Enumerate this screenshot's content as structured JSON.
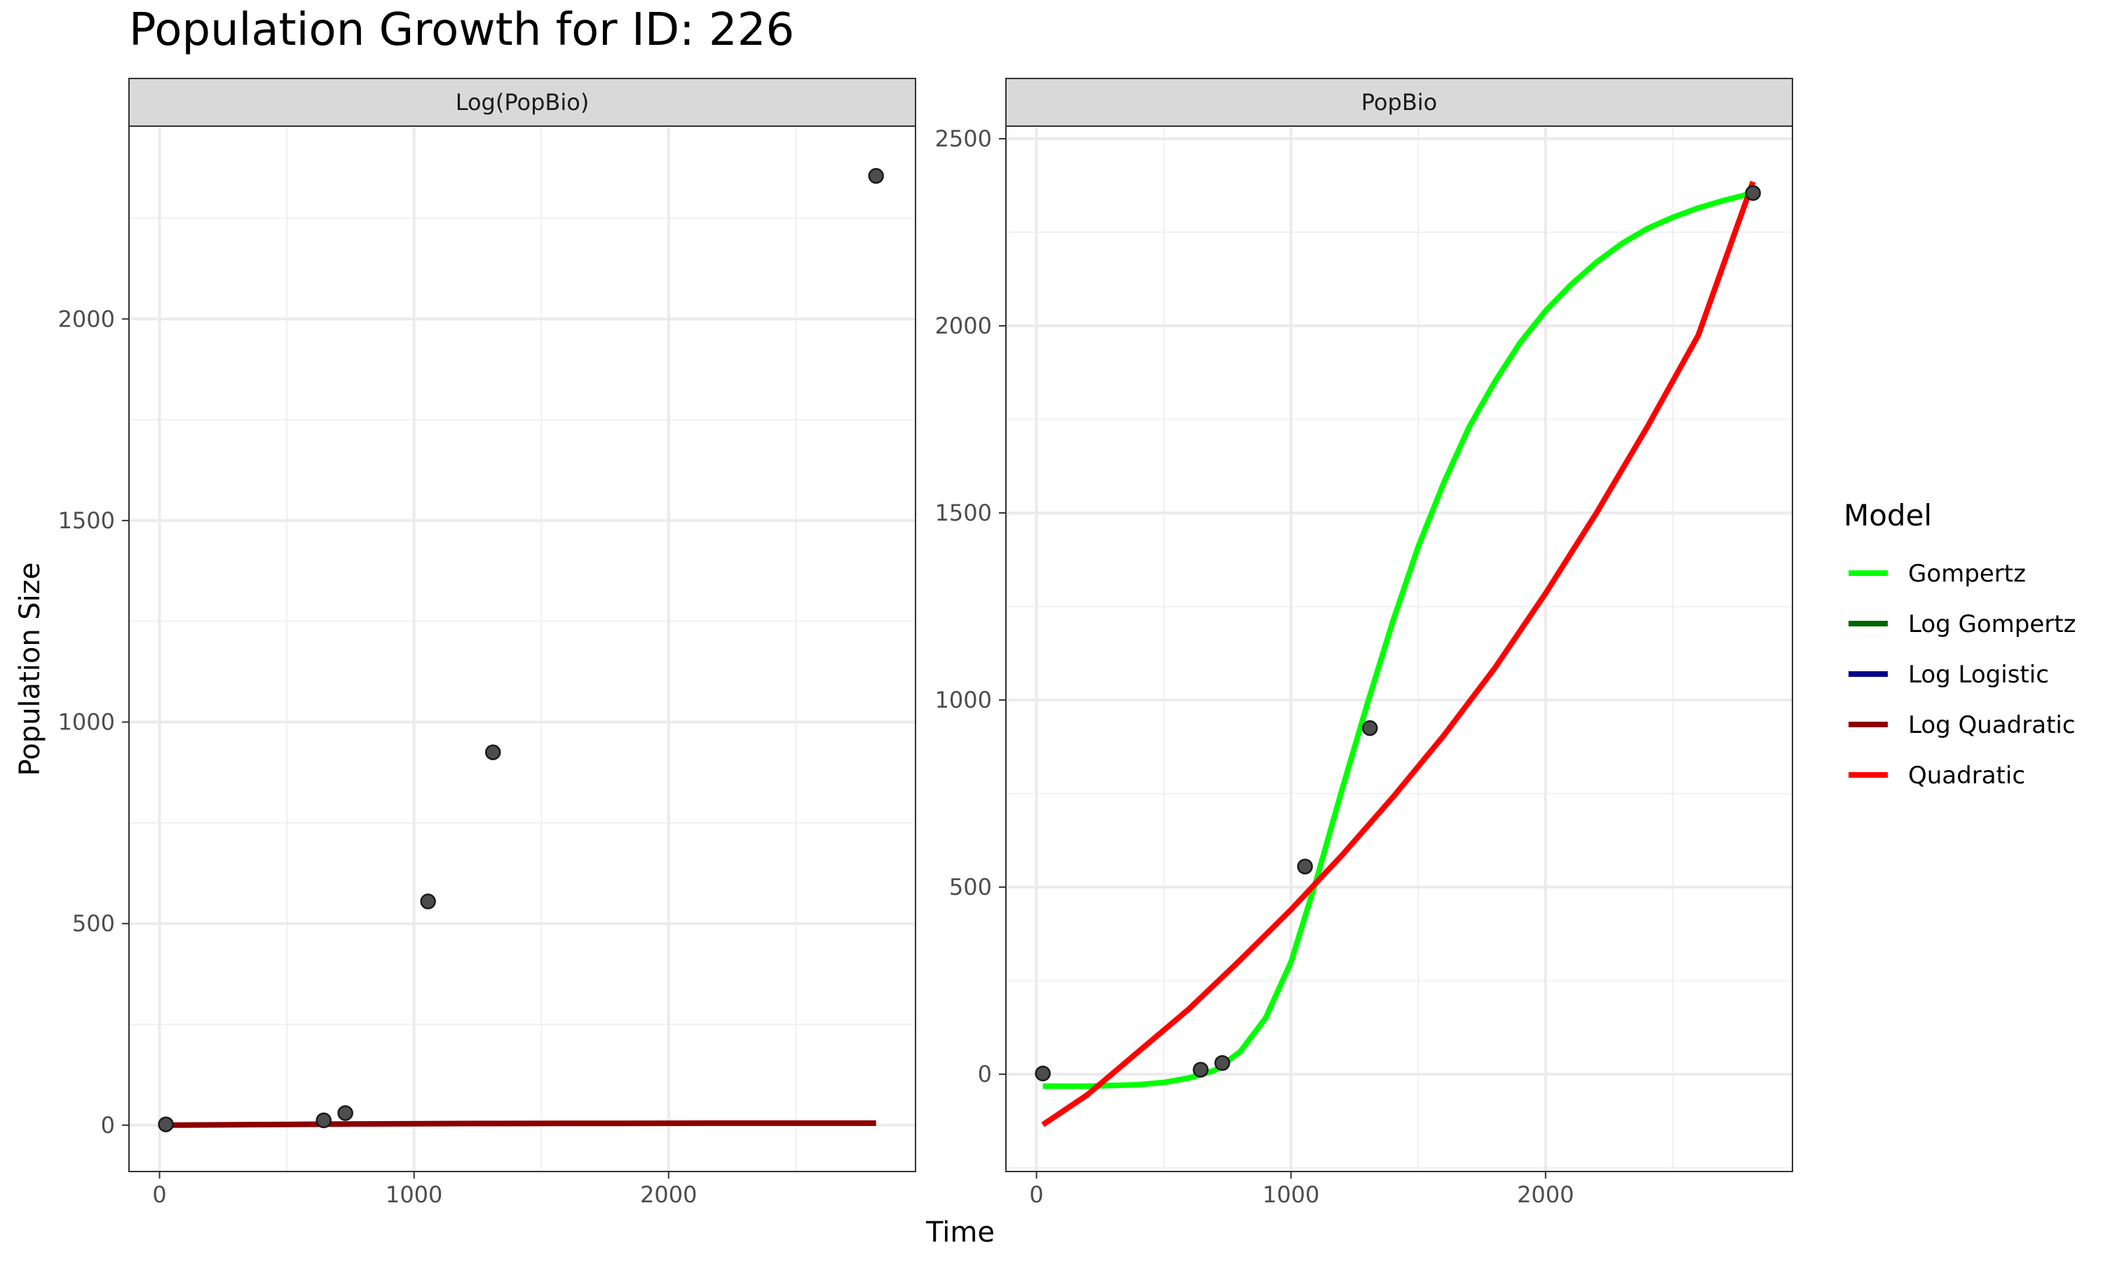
{
  "chart_data": {
    "type": "scatter",
    "title": "Population Growth for ID: 226",
    "xlabel": "Time",
    "ylabel": "Population Size",
    "legend_title": "Model",
    "legend_placement": "right",
    "grid": true,
    "legend": [
      {
        "name": "Gompertz",
        "color": "#00ff00"
      },
      {
        "name": "Log Gompertz",
        "color": "#006400"
      },
      {
        "name": "Log Logistic",
        "color": "#00008b"
      },
      {
        "name": "Log Quadratic",
        "color": "#8b0000"
      },
      {
        "name": "Quadratic",
        "color": "#ff0000"
      }
    ],
    "panels": [
      {
        "strip": "Log(PopBio)",
        "xlim": [
          -120,
          2970
        ],
        "ylim": [
          -115,
          2475
        ],
        "x_ticks": [
          0,
          1000,
          2000
        ],
        "y_ticks": [
          0,
          500,
          1000,
          1500,
          2000
        ],
        "points": {
          "x": [
            25,
            645,
            730,
            1055,
            1310,
            2815
          ],
          "y": [
            2,
            12,
            30,
            555,
            925,
            2355
          ]
        },
        "lines": [
          {
            "name": "Log Quadratic",
            "color": "#8b0000",
            "x": [
              25,
              400,
              800,
              1200,
              1600,
              2000,
              2400,
              2815
            ],
            "y": [
              0,
              1.5,
              3,
              4,
              4.5,
              4.8,
              5,
              5
            ]
          }
        ]
      },
      {
        "strip": "PopBio",
        "xlim": [
          -120,
          2970
        ],
        "ylim": [
          -260,
          2530
        ],
        "x_ticks": [
          0,
          1000,
          2000
        ],
        "y_ticks": [
          0,
          500,
          1000,
          1500,
          2000,
          2500
        ],
        "points": {
          "x": [
            25,
            645,
            730,
            1055,
            1310,
            2815
          ],
          "y": [
            2,
            12,
            30,
            555,
            925,
            2355
          ]
        },
        "lines": [
          {
            "name": "Gompertz",
            "color": "#00ff00",
            "x": [
              25,
              200,
              400,
              500,
              600,
              700,
              800,
              900,
              1000,
              1100,
              1200,
              1300,
              1400,
              1500,
              1600,
              1700,
              1800,
              1900,
              2000,
              2100,
              2200,
              2300,
              2400,
              2500,
              2600,
              2700,
              2815
            ],
            "y": [
              -32,
              -32,
              -28,
              -22,
              -10,
              10,
              60,
              150,
              300,
              520,
              760,
              990,
              1210,
              1410,
              1580,
              1730,
              1850,
              1955,
              2040,
              2110,
              2170,
              2220,
              2260,
              2290,
              2315,
              2335,
              2355
            ]
          },
          {
            "name": "Quadratic",
            "color": "#ff0000",
            "x": [
              25,
              200,
              400,
              600,
              800,
              1000,
              1200,
              1400,
              1600,
              1800,
              2000,
              2200,
              2400,
              2600,
              2815
            ],
            "y": [
              -135,
              -55,
              60,
              175,
              305,
              440,
              585,
              740,
              905,
              1085,
              1285,
              1500,
              1730,
              1975,
              2385
            ]
          }
        ]
      }
    ]
  }
}
